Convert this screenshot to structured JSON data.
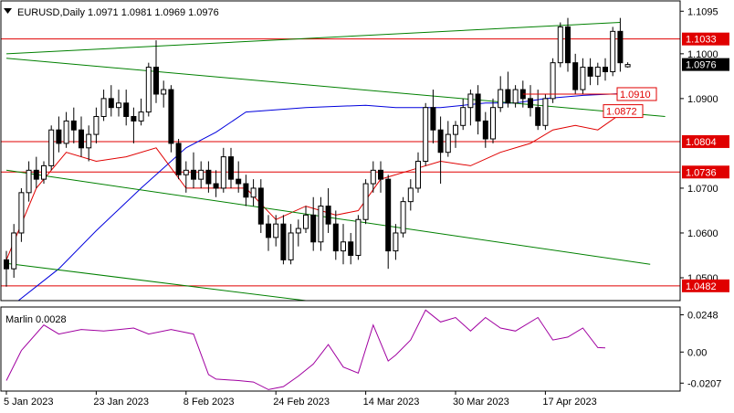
{
  "chart_data": [
    {
      "type": "candlestick",
      "title": "EURUSD,Daily  1.0971  1.0981  1.0969  1.0976",
      "symbol": "EURUSD",
      "timeframe": "Daily",
      "ohlc_header": {
        "open": "1.0971",
        "high": "1.0981",
        "low": "1.0969",
        "close": "1.0976"
      },
      "current_price": "1.0976",
      "ylim": [
        1.0449,
        1.1118
      ],
      "y_ticks": [
        "1.1095",
        "1.1000",
        "1.0900",
        "1.0700",
        "1.0600",
        "1.0500"
      ],
      "x_ticks": [
        {
          "label": "5 Jan 2023",
          "index": 0
        },
        {
          "label": "23 Jan 2023",
          "index": 12
        },
        {
          "label": "8 Feb 2023",
          "index": 24
        },
        {
          "label": "24 Feb 2023",
          "index": 36
        },
        {
          "label": "14 Mar 2023",
          "index": 48
        },
        {
          "label": "30 Mar 2023",
          "index": 60
        },
        {
          "label": "17 Apr 2023",
          "index": 72
        }
      ],
      "candles": [
        [
          1.054,
          1.056,
          1.048,
          1.052
        ],
        [
          1.052,
          1.062,
          1.05,
          1.06
        ],
        [
          1.06,
          1.07,
          1.058,
          1.069
        ],
        [
          1.069,
          1.076,
          1.067,
          1.074
        ],
        [
          1.074,
          1.077,
          1.07,
          1.072
        ],
        [
          1.072,
          1.076,
          1.071,
          1.075
        ],
        [
          1.075,
          1.084,
          1.074,
          1.083
        ],
        [
          1.083,
          1.086,
          1.078,
          1.08
        ],
        [
          1.08,
          1.087,
          1.079,
          1.085
        ],
        [
          1.085,
          1.088,
          1.08,
          1.083
        ],
        [
          1.083,
          1.086,
          1.077,
          1.079
        ],
        [
          1.079,
          1.084,
          1.076,
          1.082
        ],
        [
          1.082,
          1.088,
          1.08,
          1.086
        ],
        [
          1.086,
          1.092,
          1.085,
          1.09
        ],
        [
          1.09,
          1.093,
          1.086,
          1.088
        ],
        [
          1.088,
          1.092,
          1.086,
          1.089
        ],
        [
          1.089,
          1.092,
          1.084,
          1.086
        ],
        [
          1.086,
          1.088,
          1.08,
          1.085
        ],
        [
          1.085,
          1.09,
          1.084,
          1.087
        ],
        [
          1.087,
          1.098,
          1.086,
          1.097
        ],
        [
          1.097,
          1.103,
          1.089,
          1.091
        ],
        [
          1.091,
          1.094,
          1.088,
          1.092
        ],
        [
          1.092,
          1.093,
          1.078,
          1.08
        ],
        [
          1.08,
          1.081,
          1.072,
          1.073
        ],
        [
          1.073,
          1.076,
          1.069,
          1.074
        ],
        [
          1.074,
          1.078,
          1.07,
          1.072
        ],
        [
          1.072,
          1.076,
          1.07,
          1.074
        ],
        [
          1.074,
          1.076,
          1.069,
          1.071
        ],
        [
          1.071,
          1.074,
          1.068,
          1.07
        ],
        [
          1.07,
          1.079,
          1.069,
          1.077
        ],
        [
          1.077,
          1.079,
          1.07,
          1.072
        ],
        [
          1.072,
          1.076,
          1.069,
          1.071
        ],
        [
          1.071,
          1.073,
          1.066,
          1.068
        ],
        [
          1.068,
          1.072,
          1.066,
          1.07
        ],
        [
          1.07,
          1.072,
          1.06,
          1.062
        ],
        [
          1.062,
          1.064,
          1.056,
          1.059
        ],
        [
          1.059,
          1.064,
          1.057,
          1.062
        ],
        [
          1.062,
          1.064,
          1.053,
          1.054
        ],
        [
          1.054,
          1.062,
          1.053,
          1.06
        ],
        [
          1.06,
          1.063,
          1.057,
          1.061
        ],
        [
          1.061,
          1.066,
          1.06,
          1.064
        ],
        [
          1.064,
          1.068,
          1.056,
          1.058
        ],
        [
          1.058,
          1.068,
          1.056,
          1.066
        ],
        [
          1.066,
          1.07,
          1.06,
          1.062
        ],
        [
          1.062,
          1.065,
          1.054,
          1.056
        ],
        [
          1.056,
          1.062,
          1.053,
          1.058
        ],
        [
          1.058,
          1.06,
          1.053,
          1.055
        ],
        [
          1.055,
          1.064,
          1.054,
          1.063
        ],
        [
          1.063,
          1.072,
          1.062,
          1.071
        ],
        [
          1.071,
          1.076,
          1.069,
          1.074
        ],
        [
          1.074,
          1.076,
          1.069,
          1.072
        ],
        [
          1.072,
          1.073,
          1.052,
          1.056
        ],
        [
          1.056,
          1.062,
          1.054,
          1.06
        ],
        [
          1.06,
          1.068,
          1.059,
          1.067
        ],
        [
          1.067,
          1.072,
          1.065,
          1.07
        ],
        [
          1.07,
          1.078,
          1.069,
          1.076
        ],
        [
          1.076,
          1.089,
          1.075,
          1.088
        ],
        [
          1.088,
          1.092,
          1.08,
          1.083
        ],
        [
          1.083,
          1.086,
          1.071,
          1.078
        ],
        [
          1.078,
          1.085,
          1.077,
          1.082
        ],
        [
          1.082,
          1.085,
          1.079,
          1.084
        ],
        [
          1.084,
          1.09,
          1.083,
          1.088
        ],
        [
          1.088,
          1.092,
          1.084,
          1.091
        ],
        [
          1.091,
          1.093,
          1.082,
          1.085
        ],
        [
          1.085,
          1.087,
          1.079,
          1.081
        ],
        [
          1.081,
          1.09,
          1.08,
          1.088
        ],
        [
          1.088,
          1.095,
          1.087,
          1.092
        ],
        [
          1.092,
          1.096,
          1.088,
          1.089
        ],
        [
          1.089,
          1.093,
          1.088,
          1.092
        ],
        [
          1.092,
          1.094,
          1.088,
          1.09
        ],
        [
          1.09,
          1.093,
          1.086,
          1.088
        ],
        [
          1.088,
          1.092,
          1.083,
          1.084
        ],
        [
          1.084,
          1.091,
          1.083,
          1.09
        ],
        [
          1.09,
          1.099,
          1.089,
          1.098
        ],
        [
          1.098,
          1.107,
          1.097,
          1.106
        ],
        [
          1.106,
          1.108,
          1.096,
          1.098
        ],
        [
          1.098,
          1.1,
          1.091,
          1.092
        ],
        [
          1.092,
          1.099,
          1.091,
          1.097
        ],
        [
          1.097,
          1.099,
          1.093,
          1.095
        ],
        [
          1.095,
          1.098,
          1.093,
          1.097
        ],
        [
          1.097,
          1.099,
          1.094,
          1.096
        ],
        [
          1.096,
          1.106,
          1.095,
          1.105
        ],
        [
          1.105,
          1.108,
          1.096,
          1.098
        ],
        [
          1.0971,
          1.0981,
          1.0969,
          1.0976
        ]
      ],
      "series": [
        {
          "color": "#0000dd",
          "kind": "moving-average",
          "points": [
            [
              1,
              1.0441
            ],
            [
              7,
              1.052
            ],
            [
              12,
              1.0605
            ],
            [
              18,
              1.07
            ],
            [
              24,
              1.079
            ],
            [
              28,
              1.0825
            ],
            [
              32,
              1.087
            ],
            [
              40,
              1.088
            ],
            [
              48,
              1.0885
            ],
            [
              52,
              1.088
            ],
            [
              58,
              1.088
            ],
            [
              64,
              1.089
            ],
            [
              68,
              1.089
            ],
            [
              72,
              1.09
            ],
            [
              77,
              1.0907
            ],
            [
              82,
              1.0911
            ]
          ]
        },
        {
          "color": "#e00000",
          "kind": "moving-average",
          "points": [
            [
              0,
              1.054
            ],
            [
              4,
              1.07
            ],
            [
              8,
              1.078
            ],
            [
              12,
              1.076
            ],
            [
              16,
              1.077
            ],
            [
              20,
              1.079
            ],
            [
              24,
              1.07
            ],
            [
              28,
              1.07
            ],
            [
              32,
              1.07
            ],
            [
              36,
              1.063
            ],
            [
              40,
              1.066
            ],
            [
              44,
              1.064
            ],
            [
              47,
              1.065
            ],
            [
              50,
              1.072
            ],
            [
              54,
              1.074
            ],
            [
              58,
              1.076
            ],
            [
              62,
              1.075
            ],
            [
              66,
              1.078
            ],
            [
              70,
              1.08
            ],
            [
              73,
              1.083
            ],
            [
              76,
              1.084
            ],
            [
              79,
              1.083
            ],
            [
              82,
              1.0865
            ]
          ]
        },
        {
          "color": "#008000",
          "kind": "trend-channel-upper",
          "points": [
            [
              0,
              1.1
            ],
            [
              82,
              1.107
            ]
          ]
        },
        {
          "color": "#008000",
          "kind": "trend-channel-middle",
          "points": [
            [
              0,
              1.099
            ],
            [
              88,
              1.086
            ]
          ]
        },
        {
          "color": "#008000",
          "kind": "trend-channel-lower-1",
          "points": [
            [
              0,
              1.074
            ],
            [
              86,
              1.053
            ]
          ]
        },
        {
          "color": "#008000",
          "kind": "trend-channel-lower-2",
          "points": [
            [
              0,
              1.0532
            ],
            [
              40,
              1.0449
            ]
          ]
        }
      ],
      "levels": [
        {
          "value": 1.1033,
          "label": "1.1033",
          "color": "#e00000",
          "axis_label": true
        },
        {
          "value": 1.0804,
          "label": "1.0804",
          "color": "#e00000",
          "axis_label": true
        },
        {
          "value": 1.0736,
          "label": "1.0736",
          "color": "#e00000",
          "axis_label": true
        },
        {
          "value": 1.0482,
          "label": "1.0482",
          "color": "#e00000",
          "axis_label": true
        }
      ],
      "annotations": [
        {
          "label": "1.0910",
          "value": 1.091,
          "color": "#e00000"
        },
        {
          "label": "1.0872",
          "value": 1.0872,
          "color": "#e00000"
        }
      ],
      "colors": {
        "bull": "#ffffff",
        "bear": "#000000",
        "level": "#e00000",
        "channel": "#008000",
        "ma_blue": "#0000dd",
        "ma_red": "#e00000",
        "axis_box": "#000000"
      }
    },
    {
      "type": "line",
      "title": "Marlin 0.0028",
      "indicator": "Marlin",
      "current_value": "0.0028",
      "ylim": [
        -0.026,
        0.03
      ],
      "y_ticks": [
        "0.0248",
        "0.00",
        "-0.0207"
      ],
      "color": "#a000a0",
      "values": [
        [
          0,
          -0.019
        ],
        [
          2,
          0.001
        ],
        [
          5,
          0.018
        ],
        [
          7,
          0.012
        ],
        [
          10,
          0.015
        ],
        [
          13,
          0.014
        ],
        [
          17,
          0.016
        ],
        [
          19,
          0.012
        ],
        [
          22,
          0.015
        ],
        [
          25,
          0.012
        ],
        [
          27,
          -0.015
        ],
        [
          28,
          -0.018
        ],
        [
          31,
          -0.019
        ],
        [
          33,
          -0.02
        ],
        [
          35,
          -0.025
        ],
        [
          37,
          -0.023
        ],
        [
          39,
          -0.016
        ],
        [
          41,
          -0.008
        ],
        [
          43,
          0.005
        ],
        [
          45,
          -0.01
        ],
        [
          47,
          -0.014
        ],
        [
          49,
          0.018
        ],
        [
          51,
          -0.006
        ],
        [
          52,
          -0.002
        ],
        [
          54,
          0.008
        ],
        [
          56,
          0.028
        ],
        [
          58,
          0.02
        ],
        [
          60,
          0.023
        ],
        [
          62,
          0.014
        ],
        [
          64,
          0.023
        ],
        [
          66,
          0.016
        ],
        [
          68,
          0.014
        ],
        [
          71,
          0.023
        ],
        [
          73,
          0.008
        ],
        [
          75,
          0.01
        ],
        [
          77,
          0.016
        ],
        [
          79,
          0.003
        ],
        [
          80,
          0.0028
        ]
      ]
    }
  ]
}
